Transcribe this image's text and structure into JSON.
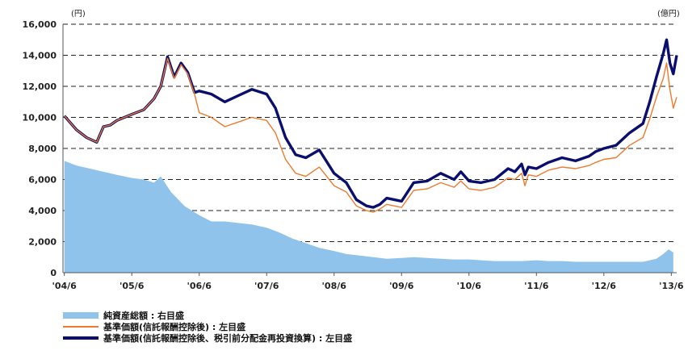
{
  "chart_data": {
    "type": "line",
    "left_unit": "(円)",
    "right_unit": "(億円)",
    "y_ticks": [
      "16,000",
      "14,000",
      "12,000",
      "10,000",
      "8,000",
      "6,000",
      "4,000",
      "2,000",
      "0"
    ],
    "ylim": [
      0,
      16000
    ],
    "x_ticks": [
      "'04/6",
      "'05/6",
      "'06/6",
      "'07/6",
      "'08/6",
      "'09/6",
      "'10/6",
      "'11/6",
      "'12/6",
      "'13/6"
    ],
    "xlim": [
      2004.4,
      2013.5
    ],
    "grid": "horizontal dashed",
    "legend_position": "bottom-left",
    "series": [
      {
        "name": "純資産総額 : 右目盛",
        "kind": "area",
        "color": "#8fc3ec",
        "x": [
          2004.42,
          2004.6,
          2004.8,
          2005.0,
          2005.2,
          2005.42,
          2005.6,
          2005.75,
          2005.85,
          2006.0,
          2006.2,
          2006.42,
          2006.6,
          2006.8,
          2007.0,
          2007.2,
          2007.42,
          2007.6,
          2007.8,
          2008.0,
          2008.2,
          2008.42,
          2008.6,
          2008.8,
          2009.0,
          2009.2,
          2009.42,
          2009.6,
          2009.8,
          2010.0,
          2010.2,
          2010.42,
          2010.6,
          2010.8,
          2011.0,
          2011.2,
          2011.42,
          2011.6,
          2011.8,
          2012.0,
          2012.2,
          2012.42,
          2012.6,
          2012.8,
          2013.0,
          2013.2,
          2013.3,
          2013.38,
          2013.45
        ],
        "values": [
          7200,
          6900,
          6700,
          6500,
          6300,
          6100,
          6000,
          5800,
          6200,
          5200,
          4300,
          3700,
          3300,
          3300,
          3200,
          3100,
          2900,
          2600,
          2200,
          1900,
          1600,
          1400,
          1200,
          1100,
          1000,
          900,
          950,
          1000,
          950,
          900,
          850,
          850,
          800,
          750,
          750,
          750,
          800,
          750,
          750,
          700,
          700,
          700,
          700,
          700,
          700,
          900,
          1200,
          1500,
          1300
        ]
      },
      {
        "name": "基準価額(信託報酬控除後) : 左目盛",
        "kind": "line",
        "color": "#ef7a2e",
        "x": [
          2004.42,
          2004.6,
          2004.75,
          2004.9,
          2005.0,
          2005.1,
          2005.2,
          2005.42,
          2005.6,
          2005.75,
          2005.85,
          2005.95,
          2006.05,
          2006.15,
          2006.25,
          2006.35,
          2006.42,
          2006.6,
          2006.8,
          2007.0,
          2007.2,
          2007.42,
          2007.55,
          2007.7,
          2007.85,
          2008.0,
          2008.2,
          2008.42,
          2008.6,
          2008.75,
          2008.9,
          2009.0,
          2009.1,
          2009.2,
          2009.42,
          2009.6,
          2009.8,
          2010.0,
          2010.2,
          2010.3,
          2010.42,
          2010.6,
          2010.8,
          2011.0,
          2011.1,
          2011.2,
          2011.25,
          2011.3,
          2011.42,
          2011.6,
          2011.8,
          2012.0,
          2012.2,
          2012.3,
          2012.42,
          2012.6,
          2012.8,
          2013.0,
          2013.1,
          2013.2,
          2013.3,
          2013.35,
          2013.4,
          2013.45,
          2013.5
        ],
        "values": [
          10100,
          9200,
          8700,
          8400,
          9400,
          9500,
          9800,
          10200,
          10500,
          11200,
          12000,
          13800,
          12500,
          13400,
          12800,
          11500,
          10300,
          10000,
          9400,
          9700,
          10000,
          9800,
          9000,
          7300,
          6400,
          6200,
          6800,
          5600,
          5200,
          4300,
          4000,
          3900,
          4100,
          4400,
          4200,
          5300,
          5400,
          5800,
          5500,
          5900,
          5400,
          5300,
          5500,
          6100,
          6000,
          6400,
          5600,
          6300,
          6200,
          6600,
          6800,
          6700,
          6900,
          7100,
          7300,
          7400,
          8200,
          8700,
          9900,
          11300,
          12500,
          13500,
          11800,
          10600,
          11300
        ]
      },
      {
        "name": "基準価額(信託報酬控除後、税引前分配金再投資換算) : 左目盛",
        "kind": "line",
        "color": "#0a0f6e",
        "x": [
          2004.42,
          2004.6,
          2004.75,
          2004.9,
          2005.0,
          2005.1,
          2005.2,
          2005.42,
          2005.6,
          2005.75,
          2005.85,
          2005.95,
          2006.05,
          2006.15,
          2006.25,
          2006.35,
          2006.42,
          2006.6,
          2006.8,
          2007.0,
          2007.2,
          2007.42,
          2007.55,
          2007.7,
          2007.85,
          2008.0,
          2008.2,
          2008.42,
          2008.6,
          2008.75,
          2008.9,
          2009.0,
          2009.1,
          2009.2,
          2009.42,
          2009.6,
          2009.8,
          2010.0,
          2010.2,
          2010.3,
          2010.42,
          2010.6,
          2010.8,
          2011.0,
          2011.1,
          2011.2,
          2011.25,
          2011.3,
          2011.42,
          2011.6,
          2011.8,
          2012.0,
          2012.2,
          2012.3,
          2012.42,
          2012.6,
          2012.8,
          2013.0,
          2013.1,
          2013.2,
          2013.3,
          2013.35,
          2013.4,
          2013.45,
          2013.5
        ],
        "values": [
          10100,
          9200,
          8700,
          8400,
          9400,
          9500,
          9800,
          10200,
          10500,
          11200,
          12000,
          13900,
          12600,
          13500,
          12900,
          11600,
          11700,
          11500,
          11000,
          11400,
          11800,
          11500,
          10600,
          8700,
          7600,
          7400,
          7900,
          6400,
          5800,
          4700,
          4300,
          4200,
          4400,
          4800,
          4600,
          5800,
          5900,
          6400,
          6000,
          6500,
          5900,
          5800,
          6000,
          6700,
          6500,
          7000,
          6300,
          6800,
          6700,
          7100,
          7400,
          7200,
          7500,
          7800,
          8000,
          8200,
          9000,
          9600,
          11000,
          12600,
          14100,
          15000,
          13500,
          12800,
          14000
        ]
      }
    ]
  },
  "legend": {
    "area_label": "純資産総額 : 右目盛",
    "nav_label": "基準価額(信託報酬控除後) : 左目盛",
    "adj_label": "基準価額(信託報酬控除後、税引前分配金再投資換算) : 左目盛"
  }
}
